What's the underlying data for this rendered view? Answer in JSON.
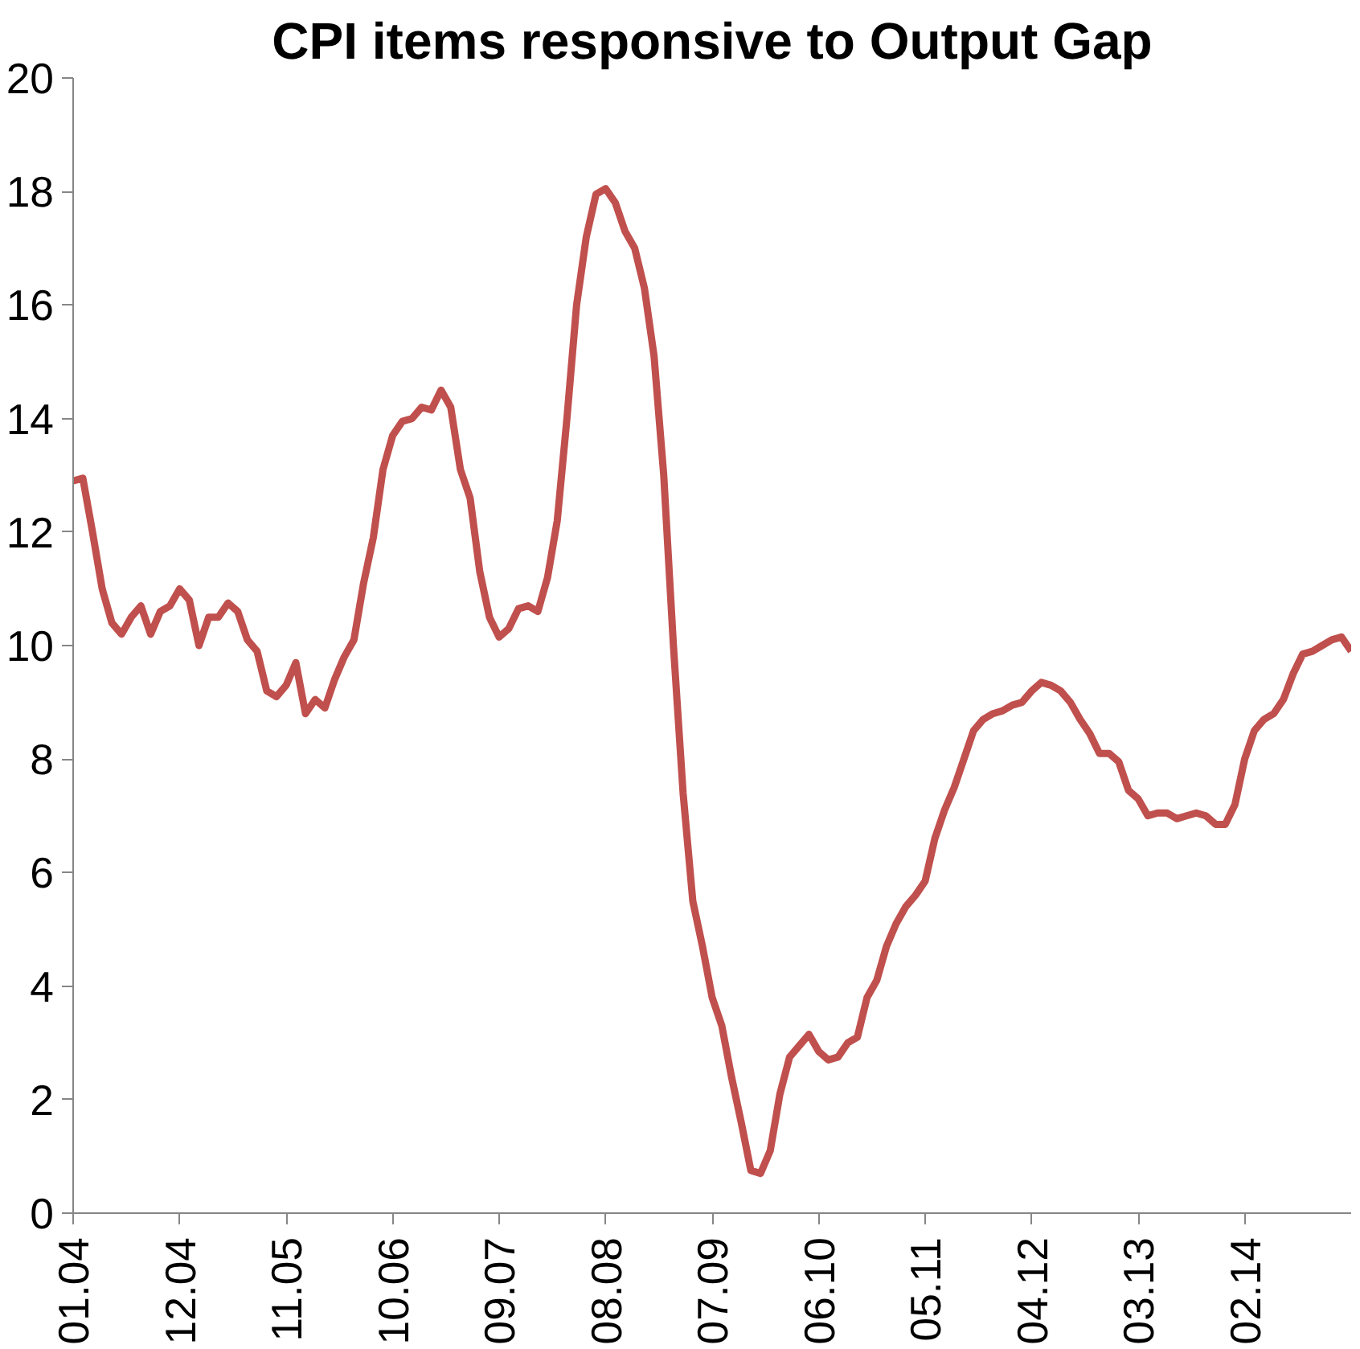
{
  "chart_data": {
    "type": "line",
    "title": "CPI items responsive to Output Gap",
    "x": [
      "2004-01",
      "2004-02",
      "2004-03",
      "2004-04",
      "2004-05",
      "2004-06",
      "2004-07",
      "2004-08",
      "2004-09",
      "2004-10",
      "2004-11",
      "2004-12",
      "2005-01",
      "2005-02",
      "2005-03",
      "2005-04",
      "2005-05",
      "2005-06",
      "2005-07",
      "2005-08",
      "2005-09",
      "2005-10",
      "2005-11",
      "2005-12",
      "2006-01",
      "2006-02",
      "2006-03",
      "2006-04",
      "2006-05",
      "2006-06",
      "2006-07",
      "2006-08",
      "2006-09",
      "2006-10",
      "2006-11",
      "2006-12",
      "2007-01",
      "2007-02",
      "2007-03",
      "2007-04",
      "2007-05",
      "2007-06",
      "2007-07",
      "2007-08",
      "2007-09",
      "2007-10",
      "2007-11",
      "2007-12",
      "2008-01",
      "2008-02",
      "2008-03",
      "2008-04",
      "2008-05",
      "2008-06",
      "2008-07",
      "2008-08",
      "2008-09",
      "2008-10",
      "2008-11",
      "2008-12",
      "2009-01",
      "2009-02",
      "2009-03",
      "2009-04",
      "2009-05",
      "2009-06",
      "2009-07",
      "2009-08",
      "2009-09",
      "2009-10",
      "2009-11",
      "2009-12",
      "2010-01",
      "2010-02",
      "2010-03",
      "2010-04",
      "2010-05",
      "2010-06",
      "2010-07",
      "2010-08",
      "2010-09",
      "2010-10",
      "2010-11",
      "2010-12",
      "2011-01",
      "2011-02",
      "2011-03",
      "2011-04",
      "2011-05",
      "2011-06",
      "2011-07",
      "2011-08",
      "2011-09",
      "2011-10",
      "2011-11",
      "2011-12",
      "2012-01",
      "2012-02",
      "2012-03",
      "2012-04",
      "2012-05",
      "2012-06",
      "2012-07",
      "2012-08",
      "2012-09",
      "2012-10",
      "2012-11",
      "2012-12",
      "2013-01",
      "2013-02",
      "2013-03",
      "2013-04",
      "2013-05",
      "2013-06",
      "2013-07",
      "2013-08",
      "2013-09",
      "2013-10",
      "2013-11",
      "2013-12",
      "2014-01",
      "2014-02",
      "2014-03",
      "2014-04",
      "2014-05",
      "2014-06",
      "2014-07",
      "2014-08",
      "2014-09",
      "2014-10",
      "2014-11",
      "2014-12",
      "2015-01"
    ],
    "series": [
      {
        "color": "#c0504d",
        "values": [
          12.9,
          12.95,
          12.0,
          11.0,
          10.4,
          10.2,
          10.5,
          10.7,
          10.2,
          10.6,
          10.7,
          11.0,
          10.8,
          10.0,
          10.5,
          10.5,
          10.75,
          10.6,
          10.1,
          9.9,
          9.2,
          9.1,
          9.3,
          9.7,
          8.8,
          9.05,
          8.9,
          9.4,
          9.8,
          10.1,
          11.1,
          11.9,
          13.1,
          13.7,
          13.95,
          14.0,
          14.2,
          14.15,
          14.5,
          14.2,
          13.1,
          12.6,
          11.3,
          10.5,
          10.15,
          10.3,
          10.65,
          10.7,
          10.6,
          11.2,
          12.2,
          14.0,
          16.0,
          17.2,
          17.95,
          18.05,
          17.8,
          17.3,
          17.0,
          16.3,
          15.1,
          13.0,
          10.0,
          7.4,
          5.5,
          4.7,
          3.8,
          3.3,
          2.4,
          1.6,
          0.75,
          0.7,
          1.1,
          2.1,
          2.75,
          2.95,
          3.15,
          2.85,
          2.7,
          2.75,
          3.0,
          3.1,
          3.8,
          4.1,
          4.7,
          5.1,
          5.4,
          5.6,
          5.85,
          6.6,
          7.1,
          7.5,
          8.0,
          8.5,
          8.7,
          8.8,
          8.85,
          8.95,
          9.0,
          9.2,
          9.35,
          9.3,
          9.2,
          9.0,
          8.7,
          8.45,
          8.1,
          8.1,
          7.95,
          7.45,
          7.3,
          7.0,
          7.05,
          7.05,
          6.95,
          7.0,
          7.05,
          7.0,
          6.85,
          6.85,
          7.2,
          8.0,
          8.5,
          8.7,
          8.8,
          9.05,
          9.5,
          9.85,
          9.9,
          10.0,
          10.1,
          10.15,
          9.9
        ]
      }
    ],
    "xlim": [
      "2004-01",
      "2015-01"
    ],
    "xticks": [
      {
        "value": "2004-01",
        "label": "01.04"
      },
      {
        "value": "2004-12",
        "label": "12.04"
      },
      {
        "value": "2005-11",
        "label": "11.05"
      },
      {
        "value": "2006-10",
        "label": "10.06"
      },
      {
        "value": "2007-09",
        "label": "09.07"
      },
      {
        "value": "2008-08",
        "label": "08.08"
      },
      {
        "value": "2009-07",
        "label": "07.09"
      },
      {
        "value": "2010-06",
        "label": "06.10"
      },
      {
        "value": "2011-05",
        "label": "05.11"
      },
      {
        "value": "2012-04",
        "label": "04.12"
      },
      {
        "value": "2013-03",
        "label": "03.13"
      },
      {
        "value": "2014-02",
        "label": "02.14"
      }
    ],
    "ylim": [
      0,
      20
    ],
    "yticks": [
      0,
      2,
      4,
      6,
      8,
      10,
      12,
      14,
      16,
      18,
      20
    ],
    "grid": false,
    "marker": "none",
    "line_style": "solid"
  }
}
